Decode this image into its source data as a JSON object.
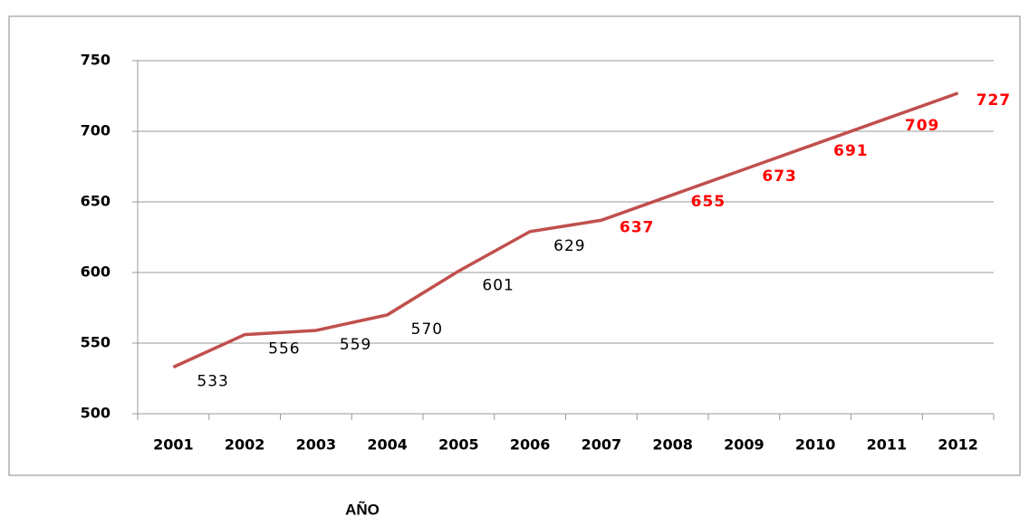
{
  "chart_data": {
    "type": "line",
    "x_label": "AÑO",
    "categories": [
      "2001",
      "2002",
      "2003",
      "2004",
      "2005",
      "2006",
      "2007",
      "2008",
      "2009",
      "2010",
      "2011",
      "2012"
    ],
    "series": [
      {
        "color": "#c0504d",
        "values": [
          533,
          556,
          559,
          570,
          601,
          629,
          637,
          655,
          673,
          691,
          709,
          727
        ]
      }
    ],
    "value_label_colors": [
      "#000000",
      "#000000",
      "#000000",
      "#000000",
      "#000000",
      "#000000",
      "#ff0000",
      "#ff0000",
      "#ff0000",
      "#ff0000",
      "#ff0000",
      "#ff0000"
    ],
    "ylim": [
      500,
      750
    ],
    "yticks": [
      500,
      550,
      600,
      650,
      700,
      750
    ],
    "grid": true
  }
}
